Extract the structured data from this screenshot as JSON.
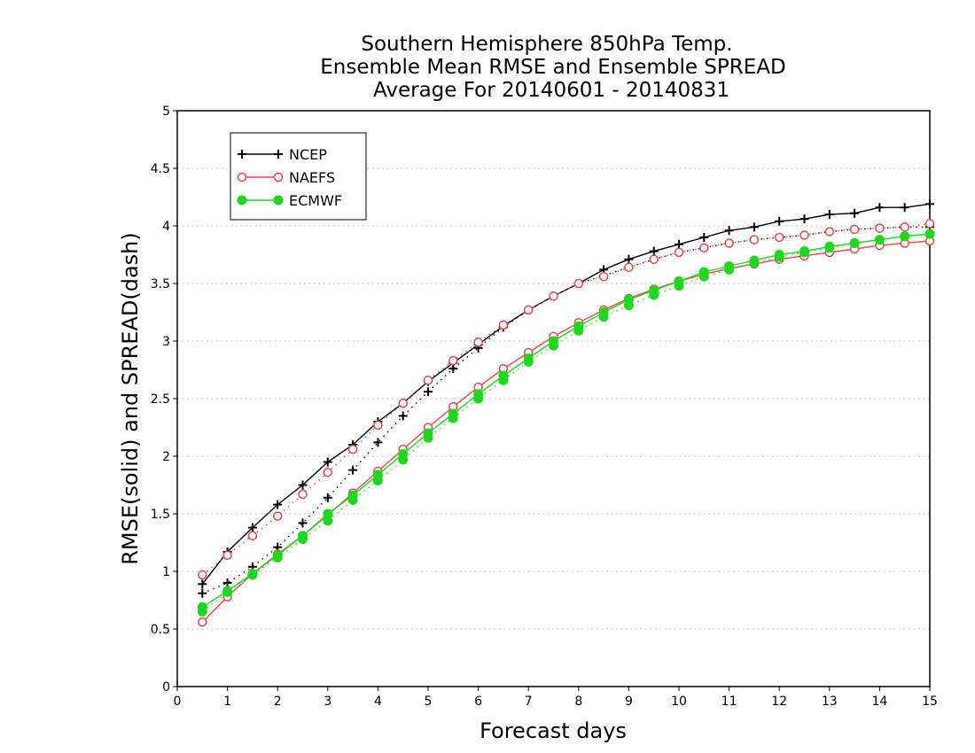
{
  "chart_data": {
    "type": "line",
    "title": [
      "Southern Hemisphere 850hPa Temp.",
      "Ensemble Mean RMSE and Ensemble SPREAD",
      "Average For 20140601 - 20140831"
    ],
    "xlabel": "Forecast days",
    "ylabel": "RMSE(solid) and SPREAD(dash)",
    "xlim": [
      0,
      15
    ],
    "ylim": [
      0,
      5
    ],
    "xticks": [
      "0",
      "1",
      "2",
      "3",
      "4",
      "5",
      "6",
      "7",
      "8",
      "9",
      "10",
      "11",
      "12",
      "13",
      "14",
      "15"
    ],
    "yticks": [
      "0",
      "0.5",
      "1",
      "1.5",
      "2",
      "2.5",
      "3",
      "3.5",
      "4",
      "4.5",
      "5"
    ],
    "grid": "horizontal dotted",
    "legend_position": "top-left",
    "x": [
      0.5,
      1,
      1.5,
      2,
      2.5,
      3,
      3.5,
      4,
      4.5,
      5,
      5.5,
      6,
      6.5,
      7,
      7.5,
      8,
      8.5,
      9,
      9.5,
      10,
      10.5,
      11,
      11.5,
      12,
      12.5,
      13,
      13.5,
      14,
      14.5,
      15
    ],
    "series": [
      {
        "name": "NCEP",
        "color": "#000000",
        "marker": "plus",
        "rmse": [
          0.89,
          1.17,
          1.38,
          1.58,
          1.75,
          1.95,
          2.1,
          2.3,
          2.46,
          2.65,
          2.81,
          2.97,
          3.13,
          3.27,
          3.39,
          3.5,
          3.62,
          3.71,
          3.78,
          3.84,
          3.9,
          3.96,
          3.99,
          4.04,
          4.06,
          4.1,
          4.11,
          4.16,
          4.16,
          4.19
        ],
        "spread": [
          0.81,
          0.9,
          1.04,
          1.21,
          1.42,
          1.64,
          1.88,
          2.12,
          2.35,
          2.56,
          2.76,
          2.94,
          3.12,
          3.27,
          3.39,
          3.5,
          3.57,
          3.64,
          3.71,
          3.77,
          3.81,
          3.85,
          3.88,
          3.9,
          3.92,
          3.95,
          3.97,
          3.98,
          3.99,
          3.99
        ]
      },
      {
        "name": "NAEFS",
        "color": "#e8474a",
        "marker": "circle",
        "rmse": [
          0.56,
          0.78,
          0.98,
          1.15,
          1.31,
          1.49,
          1.68,
          1.87,
          2.06,
          2.25,
          2.43,
          2.6,
          2.76,
          2.9,
          3.04,
          3.16,
          3.27,
          3.37,
          3.45,
          3.52,
          3.58,
          3.63,
          3.67,
          3.71,
          3.74,
          3.77,
          3.8,
          3.83,
          3.85,
          3.87
        ],
        "spread": [
          0.97,
          1.14,
          1.31,
          1.48,
          1.67,
          1.86,
          2.06,
          2.27,
          2.46,
          2.66,
          2.83,
          2.99,
          3.14,
          3.27,
          3.39,
          3.5,
          3.56,
          3.64,
          3.71,
          3.77,
          3.81,
          3.85,
          3.88,
          3.9,
          3.92,
          3.95,
          3.97,
          3.98,
          3.99,
          4.02
        ]
      },
      {
        "name": "ECMWF",
        "color": "#1ed81e",
        "marker": "filled-circle",
        "rmse": [
          0.69,
          0.83,
          0.98,
          1.14,
          1.31,
          1.5,
          1.66,
          1.84,
          2.02,
          2.2,
          2.37,
          2.54,
          2.7,
          2.85,
          3.0,
          3.13,
          3.25,
          3.36,
          3.44,
          3.52,
          3.6,
          3.65,
          3.7,
          3.75,
          3.78,
          3.82,
          3.85,
          3.88,
          3.91,
          3.93
        ],
        "spread": [
          0.65,
          0.82,
          0.97,
          1.12,
          1.28,
          1.44,
          1.62,
          1.79,
          1.97,
          2.16,
          2.33,
          2.5,
          2.66,
          2.82,
          2.96,
          3.09,
          3.21,
          3.31,
          3.4,
          3.48,
          3.56,
          3.62,
          3.68,
          3.73,
          3.77,
          3.81,
          3.85,
          3.88,
          3.91,
          3.93
        ]
      }
    ]
  }
}
